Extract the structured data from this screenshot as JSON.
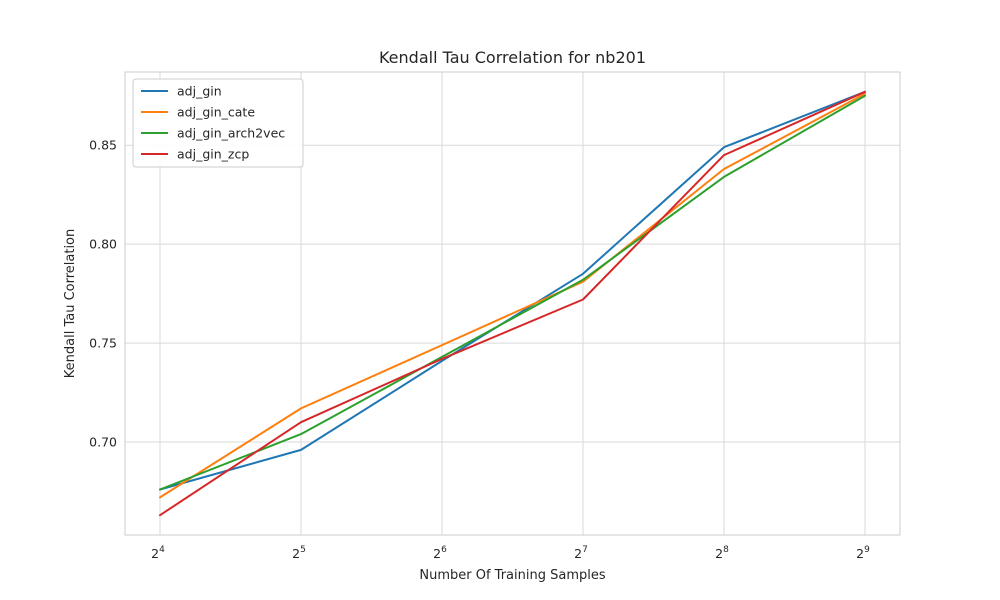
{
  "chart_data": {
    "type": "line",
    "title": "Kendall Tau Correlation for nb201",
    "xlabel": "Number Of Training Samples",
    "ylabel": "Kendall Tau Correlation",
    "x_scale": "log2",
    "x": [
      16,
      32,
      64,
      128,
      256,
      512
    ],
    "x_tick_base": "2",
    "x_tick_exponents": [
      "4",
      "5",
      "6",
      "7",
      "8",
      "9"
    ],
    "ylim": [
      0.653,
      0.887
    ],
    "y_ticks": [
      0.7,
      0.75,
      0.8,
      0.85
    ],
    "y_tick_labels": [
      "0.70",
      "0.75",
      "0.80",
      "0.85"
    ],
    "grid": true,
    "legend_position": "top-left",
    "series": [
      {
        "name": "adj_gin",
        "color": "#1f77b4",
        "values": [
          0.676,
          0.696,
          0.741,
          0.785,
          0.849,
          0.877
        ]
      },
      {
        "name": "adj_gin_cate",
        "color": "#ff7f0e",
        "values": [
          0.672,
          0.717,
          0.749,
          0.781,
          0.838,
          0.876
        ]
      },
      {
        "name": "adj_gin_arch2vec",
        "color": "#2ca02c",
        "values": [
          0.676,
          0.704,
          0.743,
          0.782,
          0.834,
          0.875
        ]
      },
      {
        "name": "adj_gin_zcp",
        "color": "#d62728",
        "values": [
          0.663,
          0.71,
          0.742,
          0.772,
          0.845,
          0.877
        ]
      }
    ]
  }
}
